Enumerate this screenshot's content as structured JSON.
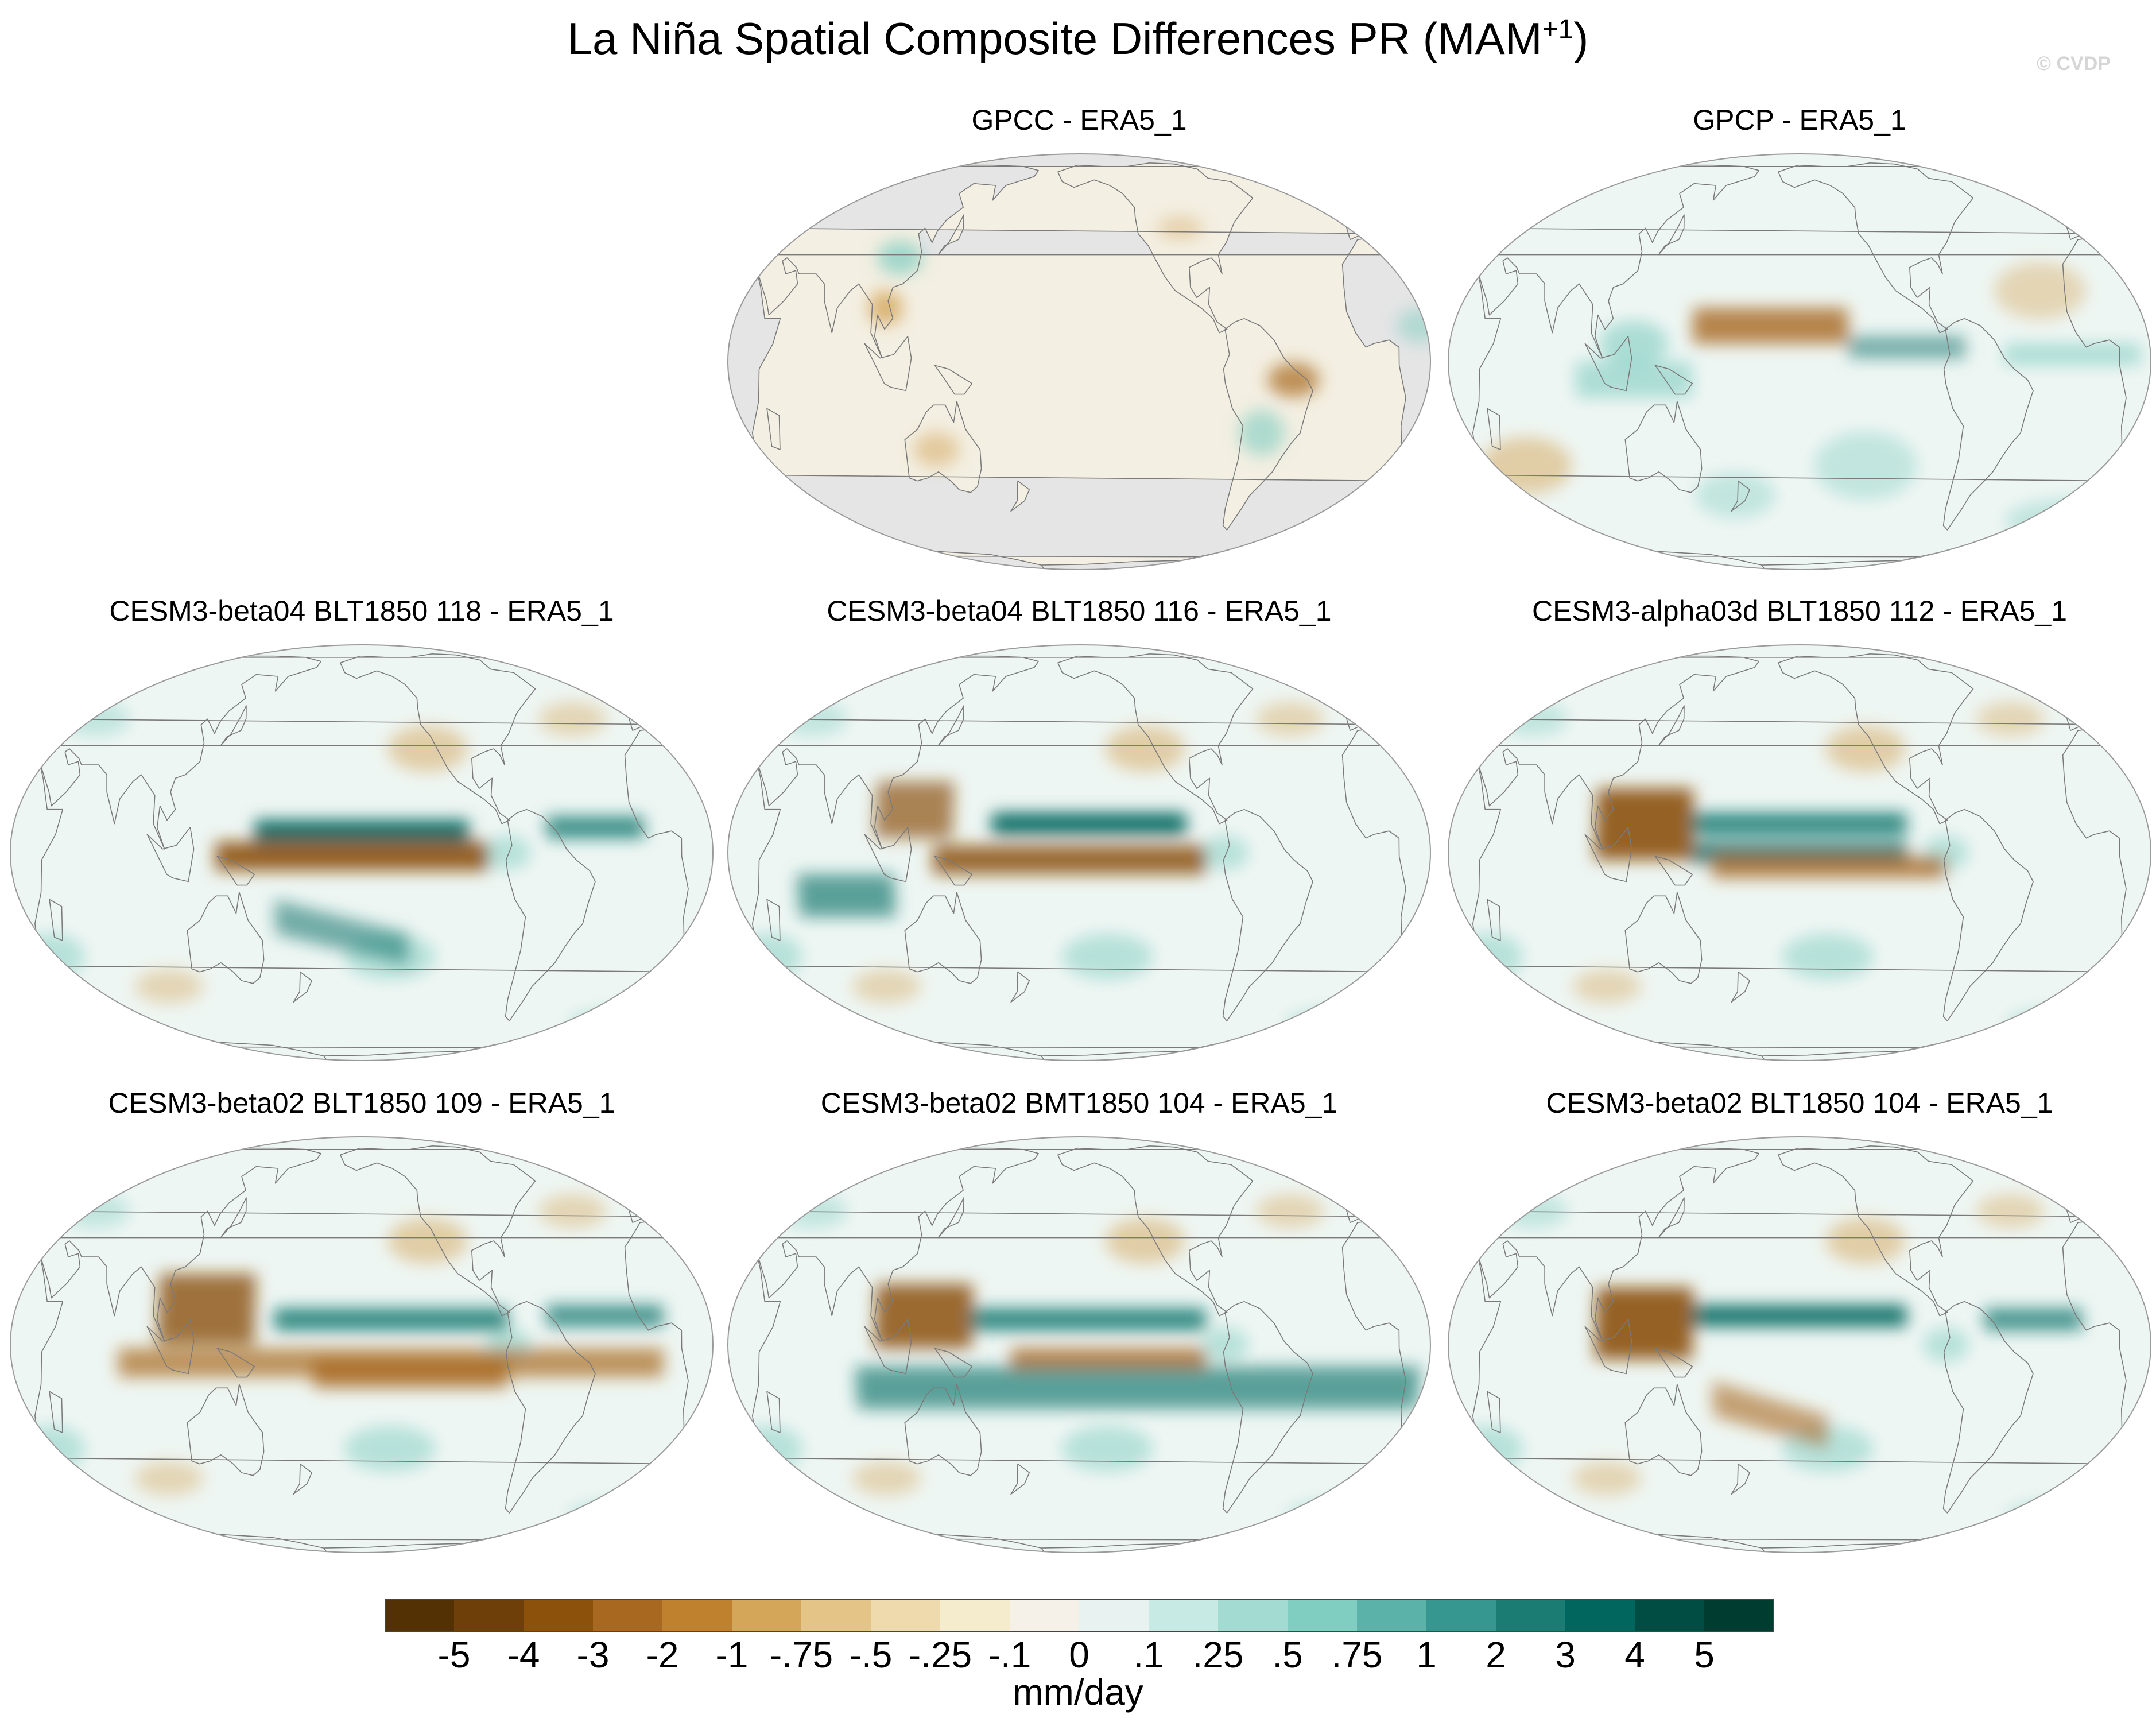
{
  "figure": {
    "title_main": "La Niña Spatial Composite Differences PR (MAM",
    "title_sup": "+1",
    "title_close": ")",
    "credit": "© CVDP"
  },
  "panels": [
    {
      "id": "gpcc",
      "title": "GPCC - ERA5_1",
      "ocean_masked": true
    },
    {
      "id": "gpcp",
      "title": "GPCP - ERA5_1",
      "ocean_masked": false
    },
    {
      "id": "b04-118",
      "title": "CESM3-beta04 BLT1850 118 - ERA5_1",
      "ocean_masked": false
    },
    {
      "id": "b04-116",
      "title": "CESM3-beta04 BLT1850 116 - ERA5_1",
      "ocean_masked": false
    },
    {
      "id": "a03d-112",
      "title": "CESM3-alpha03d BLT1850 112 - ERA5_1",
      "ocean_masked": false
    },
    {
      "id": "b02-109",
      "title": "CESM3-beta02 BLT1850 109 - ERA5_1",
      "ocean_masked": false
    },
    {
      "id": "b02bmt-104",
      "title": "CESM3-beta02 BMT1850 104 - ERA5_1",
      "ocean_masked": false
    },
    {
      "id": "b02-104",
      "title": "CESM3-beta02 BLT1850 104 - ERA5_1",
      "ocean_masked": false
    }
  ],
  "colorbar": {
    "units": "mm/day",
    "ticks": [
      "-5",
      "-4",
      "-3",
      "-2",
      "-1",
      "-.75",
      "-.5",
      "-.25",
      "-.1",
      "0",
      ".1",
      ".25",
      ".5",
      ".75",
      "1",
      "2",
      "3",
      "4",
      "5"
    ],
    "colors": [
      "#543005",
      "#6f3f0a",
      "#8c510a",
      "#a86820",
      "#bf812d",
      "#d4a65a",
      "#e4c487",
      "#efdaad",
      "#f5ebcd",
      "#f5f1e8",
      "#e8f3f1",
      "#c7eae5",
      "#a3dbd3",
      "#80cdc1",
      "#5ab2a8",
      "#35978f",
      "#1b7c74",
      "#01665e",
      "#014c43",
      "#003c30"
    ]
  },
  "colors": {
    "ocean_mask": "#e5e5e5",
    "coast": "#7a7a7a"
  }
}
